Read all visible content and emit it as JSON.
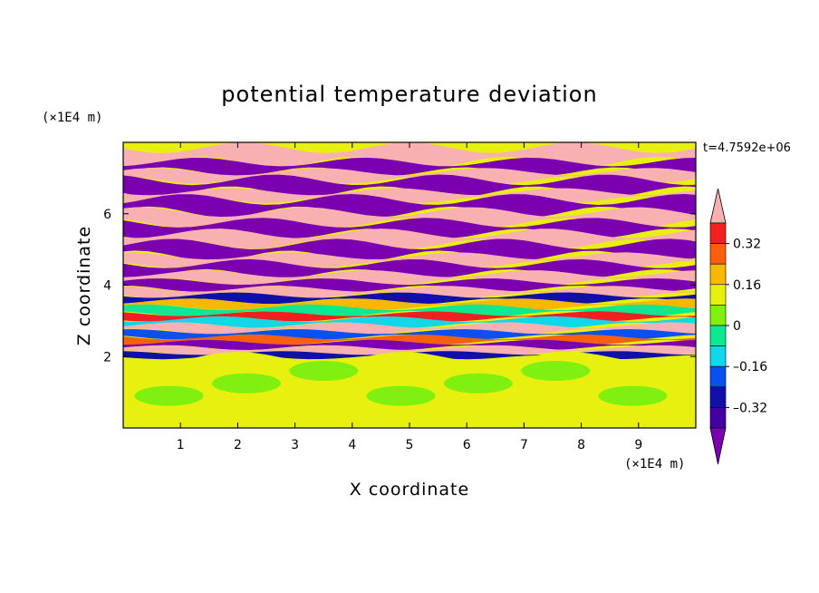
{
  "chart_data": {
    "type": "heatmap",
    "title": "potential temperature deviation",
    "xlabel": "X coordinate",
    "ylabel": "Z coordinate",
    "x_unit": "(×1E4 m)",
    "y_unit": "(×1E4 m)",
    "time_label": "t=4.7592e+06",
    "xlim": [
      0,
      10
    ],
    "ylim": [
      0,
      8
    ],
    "x_ticks": [
      "1",
      "2",
      "3",
      "4",
      "5",
      "6",
      "7",
      "8",
      "9"
    ],
    "x_tick_values": [
      1,
      2,
      3,
      4,
      5,
      6,
      7,
      8,
      9
    ],
    "y_ticks": [
      "2",
      "4",
      "6"
    ],
    "y_tick_values": [
      2,
      4,
      6
    ],
    "colorbar": {
      "levels": [
        -0.48,
        -0.4,
        -0.32,
        -0.24,
        -0.16,
        -0.08,
        0,
        0.08,
        0.16,
        0.24,
        0.32,
        0.4,
        0.48
      ],
      "labels": [
        "0.32",
        "0.16",
        "0",
        "–0.16",
        "–0.32"
      ],
      "label_values": [
        0.32,
        0.16,
        0,
        -0.16,
        -0.32
      ],
      "colors": [
        "#7a00b0",
        "#4400a0",
        "#1010a8",
        "#0a50f0",
        "#10d8e8",
        "#10e890",
        "#80f010",
        "#e8f010",
        "#f8b800",
        "#f86010",
        "#f02020",
        "#f8b0b0"
      ],
      "extend": "both"
    },
    "bands": [
      {
        "z0": 7.45,
        "z1": 7.85,
        "level": "max"
      },
      {
        "z0": 7.18,
        "z1": 7.45,
        "level": "min"
      },
      {
        "z0": 6.95,
        "z1": 7.18,
        "level": "max"
      },
      {
        "z0": 6.62,
        "z1": 6.95,
        "level": "min"
      },
      {
        "z0": 6.4,
        "z1": 6.62,
        "level": "max"
      },
      {
        "z0": 6.05,
        "z1": 6.4,
        "level": "min"
      },
      {
        "z0": 5.75,
        "z1": 6.05,
        "level": "max"
      },
      {
        "z0": 5.45,
        "z1": 5.75,
        "level": "min"
      },
      {
        "z0": 5.15,
        "z1": 5.45,
        "level": "max"
      },
      {
        "z0": 4.82,
        "z1": 5.15,
        "level": "min"
      },
      {
        "z0": 4.6,
        "z1": 4.82,
        "level": "max"
      },
      {
        "z0": 4.32,
        "z1": 4.6,
        "level": "min"
      },
      {
        "z0": 4.1,
        "z1": 4.32,
        "level": "max"
      },
      {
        "z0": 3.9,
        "z1": 4.1,
        "level": "min"
      },
      {
        "z0": 3.72,
        "z1": 3.9,
        "level": "0.4"
      },
      {
        "z0": 3.55,
        "z1": 3.72,
        "level": "-0.32"
      },
      {
        "z0": 3.38,
        "z1": 3.55,
        "level": "0.16"
      },
      {
        "z0": 3.2,
        "z1": 3.38,
        "level": "-0.08"
      },
      {
        "z0": 3.05,
        "z1": 3.2,
        "level": "0.32"
      },
      {
        "z0": 2.88,
        "z1": 3.05,
        "level": "-0.16"
      },
      {
        "z0": 2.7,
        "z1": 2.88,
        "level": "0.4"
      },
      {
        "z0": 2.55,
        "z1": 2.7,
        "level": "-0.24"
      },
      {
        "z0": 2.4,
        "z1": 2.55,
        "level": "0.24"
      },
      {
        "z0": 2.25,
        "z1": 2.4,
        "level": "min"
      },
      {
        "z0": 2.1,
        "z1": 2.25,
        "level": "0.4"
      },
      {
        "z0": 1.98,
        "z1": 2.1,
        "level": "-0.32"
      },
      {
        "z0": 0,
        "z1": 1.98,
        "level": "0.08"
      }
    ]
  }
}
